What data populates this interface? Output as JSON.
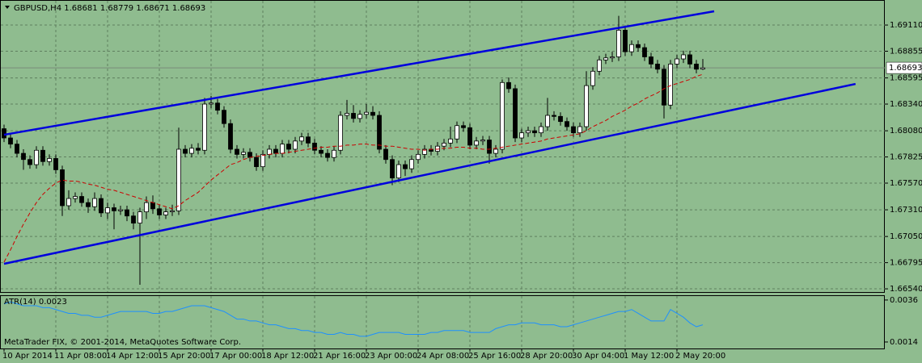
{
  "chart_data": [
    {
      "type": "candlestick",
      "symbol": "GBPUSD,H4",
      "header_values": [
        1.68681,
        1.68779,
        1.68671,
        1.68693
      ],
      "current_price": 1.68693,
      "categories": [
        "10 Apr 2014",
        null,
        null,
        null,
        null,
        null,
        null,
        null,
        "11 Apr 08:00",
        null,
        null,
        null,
        null,
        null,
        null,
        null,
        "14 Apr 12:00",
        null,
        null,
        null,
        null,
        null,
        null,
        null,
        "15 Apr 20:00",
        null,
        null,
        null,
        null,
        null,
        null,
        null,
        "17 Apr 00:00",
        null,
        null,
        null,
        null,
        null,
        null,
        null,
        "18 Apr 12:00",
        null,
        null,
        null,
        null,
        null,
        null,
        null,
        "21 Apr 16:00",
        null,
        null,
        null,
        null,
        null,
        null,
        null,
        "23 Apr 00:00",
        null,
        null,
        null,
        null,
        null,
        null,
        null,
        "24 Apr 08:00",
        null,
        null,
        null,
        null,
        null,
        null,
        null,
        "25 Apr 16:00",
        null,
        null,
        null,
        null,
        null,
        null,
        null,
        "28 Apr 20:00",
        null,
        null,
        null,
        null,
        null,
        null,
        null,
        "30 Apr 04:00",
        null,
        null,
        null,
        null,
        null,
        null,
        null,
        "1 May 12:00",
        null,
        null,
        null,
        null,
        null,
        null,
        null,
        "2 May 20:00",
        null,
        null,
        null,
        null
      ],
      "open": [
        1.681,
        1.6801,
        1.6795,
        1.6786,
        1.678,
        1.6775,
        1.6789,
        1.6778,
        1.6781,
        1.677,
        1.6735,
        1.6742,
        1.6744,
        1.6738,
        1.6734,
        1.6742,
        1.6728,
        1.6733,
        1.673,
        1.6731,
        1.6725,
        1.6718,
        1.6729,
        1.6738,
        1.6732,
        1.6726,
        1.6729,
        1.673,
        1.679,
        1.6786,
        1.6791,
        1.6789,
        1.6834,
        1.6835,
        1.6828,
        1.6815,
        1.679,
        1.6785,
        1.6787,
        1.6782,
        1.6773,
        1.6785,
        1.679,
        1.6786,
        1.6795,
        1.679,
        1.6798,
        1.6802,
        1.6796,
        1.6789,
        1.6786,
        1.6782,
        1.6789,
        1.6823,
        1.6825,
        1.682,
        1.6824,
        1.6826,
        1.6823,
        1.679,
        1.678,
        1.6762,
        1.6775,
        1.6771,
        1.678,
        1.6785,
        1.679,
        1.6788,
        1.6793,
        1.6796,
        1.68,
        1.6813,
        1.6811,
        1.6794,
        1.6798,
        1.6799,
        1.6786,
        1.679,
        1.6855,
        1.6849,
        1.6801,
        1.6806,
        1.6808,
        1.6806,
        1.6812,
        1.6823,
        1.6822,
        1.6817,
        1.6812,
        1.6806,
        1.6812,
        1.6852,
        1.6866,
        1.6877,
        1.6879,
        1.688,
        1.6906,
        1.6885,
        1.6892,
        1.6889,
        1.688,
        1.6873,
        1.6868,
        1.6833,
        1.6873,
        1.6878,
        1.6882,
        1.6873,
        1.68681
      ],
      "high": [
        1.6814,
        1.6805,
        1.6799,
        1.679,
        1.6784,
        1.6793,
        1.6793,
        1.6785,
        1.6785,
        1.6774,
        1.675,
        1.6748,
        1.6748,
        1.6742,
        1.6748,
        1.6746,
        1.6738,
        1.6737,
        1.6735,
        1.6735,
        1.6729,
        1.6733,
        1.6744,
        1.6745,
        1.6736,
        1.6733,
        1.6736,
        1.6811,
        1.6794,
        1.6795,
        1.6796,
        1.684,
        1.6842,
        1.6839,
        1.6832,
        1.6819,
        1.6794,
        1.6791,
        1.6791,
        1.6786,
        1.6789,
        1.6794,
        1.6794,
        1.6799,
        1.6799,
        1.6802,
        1.6806,
        1.6806,
        1.68,
        1.6793,
        1.679,
        1.6793,
        1.6827,
        1.6838,
        1.6833,
        1.6828,
        1.6834,
        1.6832,
        1.6827,
        1.6794,
        1.6784,
        1.6779,
        1.6779,
        1.6784,
        1.6789,
        1.6794,
        1.6794,
        1.6797,
        1.68,
        1.6812,
        1.6817,
        1.6817,
        1.6815,
        1.6802,
        1.6803,
        1.6803,
        1.6794,
        1.6858,
        1.686,
        1.6853,
        1.681,
        1.6812,
        1.6812,
        1.6816,
        1.684,
        1.6827,
        1.6826,
        1.6821,
        1.6816,
        1.6816,
        1.6866,
        1.687,
        1.6881,
        1.6883,
        1.6885,
        1.692,
        1.691,
        1.6896,
        1.6896,
        1.6893,
        1.6884,
        1.6877,
        1.6872,
        1.6877,
        1.6882,
        1.6886,
        1.6886,
        1.6877,
        1.68779
      ],
      "low": [
        1.6797,
        1.6791,
        1.6782,
        1.677,
        1.6771,
        1.6771,
        1.6774,
        1.6774,
        1.6766,
        1.6725,
        1.6731,
        1.6738,
        1.6734,
        1.6728,
        1.673,
        1.6724,
        1.6722,
        1.6712,
        1.6726,
        1.672,
        1.6712,
        1.6658,
        1.6722,
        1.6727,
        1.6722,
        1.6722,
        1.6725,
        1.6726,
        1.6782,
        1.6782,
        1.6785,
        1.6785,
        1.683,
        1.6824,
        1.6811,
        1.6786,
        1.6781,
        1.6781,
        1.6778,
        1.6769,
        1.6769,
        1.6781,
        1.6782,
        1.6782,
        1.6786,
        1.6786,
        1.6794,
        1.6792,
        1.6785,
        1.6782,
        1.6778,
        1.6778,
        1.6785,
        1.6819,
        1.6816,
        1.6816,
        1.682,
        1.6819,
        1.6786,
        1.6776,
        1.6755,
        1.6758,
        1.6764,
        1.6767,
        1.6776,
        1.6781,
        1.6784,
        1.6784,
        1.6789,
        1.6792,
        1.6796,
        1.6807,
        1.679,
        1.679,
        1.6794,
        1.6776,
        1.6782,
        1.6786,
        1.6845,
        1.6797,
        1.6797,
        1.6802,
        1.6802,
        1.6802,
        1.6808,
        1.6818,
        1.6813,
        1.6808,
        1.6802,
        1.6802,
        1.6808,
        1.6848,
        1.6862,
        1.6873,
        1.6875,
        1.6876,
        1.6881,
        1.6881,
        1.6885,
        1.6876,
        1.6869,
        1.6864,
        1.682,
        1.6829,
        1.6869,
        1.6874,
        1.6869,
        1.6864,
        1.68671
      ],
      "close": [
        1.6801,
        1.6795,
        1.6786,
        1.678,
        1.6775,
        1.6789,
        1.6778,
        1.6781,
        1.677,
        1.6735,
        1.6742,
        1.6744,
        1.6738,
        1.6734,
        1.6742,
        1.6728,
        1.6733,
        1.673,
        1.6731,
        1.6725,
        1.6718,
        1.6729,
        1.6738,
        1.6732,
        1.6726,
        1.6729,
        1.673,
        1.679,
        1.6786,
        1.6791,
        1.6789,
        1.6834,
        1.6835,
        1.6828,
        1.6815,
        1.679,
        1.6785,
        1.6787,
        1.6782,
        1.6773,
        1.6785,
        1.679,
        1.6786,
        1.6795,
        1.679,
        1.6798,
        1.6802,
        1.6796,
        1.6789,
        1.6786,
        1.6782,
        1.6789,
        1.6823,
        1.6825,
        1.682,
        1.6824,
        1.6826,
        1.6823,
        1.679,
        1.678,
        1.6762,
        1.6775,
        1.6771,
        1.678,
        1.6785,
        1.679,
        1.6788,
        1.6793,
        1.6796,
        1.68,
        1.6813,
        1.6811,
        1.6794,
        1.6798,
        1.6799,
        1.6786,
        1.679,
        1.6855,
        1.6849,
        1.6801,
        1.6806,
        1.6808,
        1.6806,
        1.6812,
        1.6823,
        1.6822,
        1.6817,
        1.6812,
        1.6806,
        1.6812,
        1.6852,
        1.6866,
        1.6877,
        1.6879,
        1.688,
        1.6906,
        1.6885,
        1.6892,
        1.6889,
        1.688,
        1.6873,
        1.6868,
        1.6833,
        1.6873,
        1.6878,
        1.6882,
        1.6873,
        1.6868,
        1.68693
      ],
      "bull_color": "#ffffff",
      "bear_color": "#000000",
      "wick_color": "#000000",
      "moving_average": {
        "color": "#cc0000",
        "values": [
          1.668,
          1.6692,
          1.6705,
          1.6717,
          1.6728,
          1.6738,
          1.6746,
          1.6752,
          1.6757,
          1.676,
          1.6759,
          1.6759,
          1.6758,
          1.6756,
          1.6755,
          1.6753,
          1.6751,
          1.675,
          1.6748,
          1.6746,
          1.6744,
          1.6742,
          1.674,
          1.6738,
          1.6736,
          1.6734,
          1.6732,
          1.6735,
          1.674,
          1.6744,
          1.6748,
          1.6754,
          1.676,
          1.6765,
          1.677,
          1.6775,
          1.6777,
          1.678,
          1.6782,
          1.6783,
          1.6784,
          1.6785,
          1.6786,
          1.6786,
          1.6787,
          1.6788,
          1.6789,
          1.679,
          1.6791,
          1.6792,
          1.6792,
          1.6793,
          1.6793,
          1.6794,
          1.6794,
          1.6795,
          1.6795,
          1.6794,
          1.6794,
          1.6793,
          1.6793,
          1.6792,
          1.6791,
          1.679,
          1.679,
          1.6789,
          1.679,
          1.679,
          1.6791,
          1.6791,
          1.6792,
          1.6792,
          1.6791,
          1.6791,
          1.679,
          1.679,
          1.6791,
          1.6792,
          1.6793,
          1.6794,
          1.6795,
          1.6796,
          1.6797,
          1.6798,
          1.68,
          1.6801,
          1.6802,
          1.6803,
          1.6804,
          1.6805,
          1.6808,
          1.6812,
          1.6815,
          1.6818,
          1.6822,
          1.6825,
          1.6828,
          1.6832,
          1.6835,
          1.6839,
          1.6842,
          1.6845,
          1.6849,
          1.6852,
          1.6854,
          1.6856,
          1.6858,
          1.6861,
          1.6863
        ]
      },
      "trendlines": [
        {
          "color": "#0000dd",
          "x": [
            0,
            109.75
          ],
          "y": [
            1.68041,
            1.69244
          ]
        },
        {
          "color": "#0000dd",
          "x": [
            0,
            131.6
          ],
          "y": [
            1.66784,
            1.68536
          ]
        }
      ],
      "ylim": [
        1.66509,
        1.69354
      ],
      "yticks": [
        {
          "value": 1.6911,
          "label": "1.69110"
        },
        1.68855,
        1.68595,
        {
          "value": 1.6834,
          "label": "1.68340"
        },
        {
          "value": 1.6808,
          "label": "1.68080"
        },
        1.67825,
        {
          "value": 1.6757,
          "label": "1.67570"
        },
        {
          "value": 1.6731,
          "label": "1.67310"
        },
        {
          "value": 1.6705,
          "label": "1.67050"
        },
        1.66795,
        {
          "value": 1.6654,
          "label": "1.66540"
        }
      ],
      "grid": true
    },
    {
      "type": "line",
      "title": "ATR(14)",
      "last_value": 0.0023,
      "color": "#1e90ff",
      "values": [
        0.0034,
        0.0035,
        0.0034,
        0.0033,
        0.0033,
        0.0033,
        0.0032,
        0.0032,
        0.0031,
        0.003,
        0.0029,
        0.0029,
        0.0028,
        0.0028,
        0.0027,
        0.0027,
        0.0028,
        0.0029,
        0.003,
        0.003,
        0.003,
        0.003,
        0.003,
        0.0029,
        0.0029,
        0.003,
        0.003,
        0.0031,
        0.0032,
        0.0033,
        0.0033,
        0.0033,
        0.0032,
        0.0031,
        0.003,
        0.0028,
        0.0026,
        0.0026,
        0.0025,
        0.0025,
        0.0024,
        0.0023,
        0.0023,
        0.0022,
        0.0021,
        0.0021,
        0.002,
        0.002,
        0.0019,
        0.0019,
        0.0018,
        0.0018,
        0.0019,
        0.0018,
        0.0018,
        0.0017,
        0.0017,
        0.0018,
        0.0019,
        0.0019,
        0.0019,
        0.0019,
        0.0018,
        0.0018,
        0.0018,
        0.0018,
        0.0019,
        0.0019,
        0.002,
        0.002,
        0.002,
        0.002,
        0.0019,
        0.0019,
        0.0019,
        0.0019,
        0.0021,
        0.0022,
        0.0023,
        0.0023,
        0.0024,
        0.0024,
        0.0024,
        0.0023,
        0.0023,
        0.0023,
        0.0022,
        0.0022,
        0.0023,
        0.0024,
        0.0025,
        0.0026,
        0.0027,
        0.0028,
        0.0029,
        0.003,
        0.003,
        0.0031,
        0.0029,
        0.0027,
        0.0025,
        0.0025,
        0.0025,
        0.0031,
        0.0029,
        0.0027,
        0.0024,
        0.0022,
        0.0023
      ],
      "ylim": [
        0.00106,
        0.00385
      ],
      "yticks": [
        0.0036,
        0.0014
      ]
    }
  ],
  "footer": "MetaTrader FIX, © 2001-2014, MetaQuotes Software Corp."
}
